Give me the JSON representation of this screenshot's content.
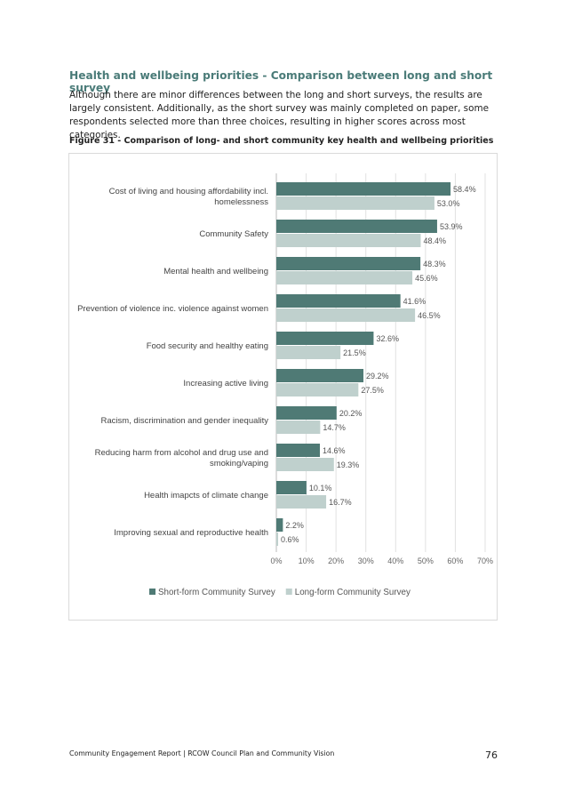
{
  "section": {
    "heading": "Health and wellbeing priorities - Comparison between long and short survey",
    "intro": "Although there are minor differences between the long and short surveys, the results are largely consistent. Additionally, as the short survey was mainly completed on paper, some respondents selected more than three choices, resulting in higher scores across most categories.",
    "figure_caption": "Figure 31 - Comparison of long- and short community key health and wellbeing priorities"
  },
  "chart_data": {
    "type": "bar",
    "orientation": "horizontal",
    "title": "",
    "xlabel": "",
    "ylabel": "",
    "categories": [
      [
        "Cost of living and housing affordability incl.",
        "homelessness"
      ],
      [
        "Community Safety"
      ],
      [
        "Mental health and wellbeing"
      ],
      [
        "Prevention of violence inc. violence against women"
      ],
      [
        "Food security and healthy eating"
      ],
      [
        "Increasing active living"
      ],
      [
        "Racism, discrimination and gender inequality"
      ],
      [
        "Reducing harm from alcohol and drug use and",
        "smoking/vaping"
      ],
      [
        "Health imapcts of climate change"
      ],
      [
        "Improving sexual and reproductive health"
      ]
    ],
    "series": [
      {
        "name": "Short-form Community Survey",
        "color": "#4f7a75",
        "values": [
          58.4,
          53.9,
          48.3,
          41.6,
          32.6,
          29.2,
          20.2,
          14.6,
          10.1,
          2.2
        ],
        "labels": [
          "58.4%",
          "53.9%",
          "48.3%",
          "41.6%",
          "32.6%",
          "29.2%",
          "20.2%",
          "14.6%",
          "10.1%",
          "2.2%"
        ]
      },
      {
        "name": "Long-form Community Survey",
        "color": "#bfd0cd",
        "values": [
          53.0,
          48.4,
          45.6,
          46.5,
          21.5,
          27.5,
          14.7,
          19.3,
          16.7,
          0.6
        ],
        "labels": [
          "53.0%",
          "48.4%",
          "45.6%",
          "46.5%",
          "21.5%",
          "27.5%",
          "14.7%",
          "19.3%",
          "16.7%",
          "0.6%"
        ]
      }
    ],
    "xlim": [
      0,
      70
    ],
    "xticks": [
      0,
      10,
      20,
      30,
      40,
      50,
      60,
      70
    ],
    "xtick_labels": [
      "0%",
      "10%",
      "20%",
      "30%",
      "40%",
      "50%",
      "60%",
      "70%"
    ],
    "grid": "vertical",
    "legend_position": "bottom"
  },
  "footer": {
    "text": "Community Engagement Report | RCOW Council Plan and Community Vision",
    "page_number": "76"
  }
}
